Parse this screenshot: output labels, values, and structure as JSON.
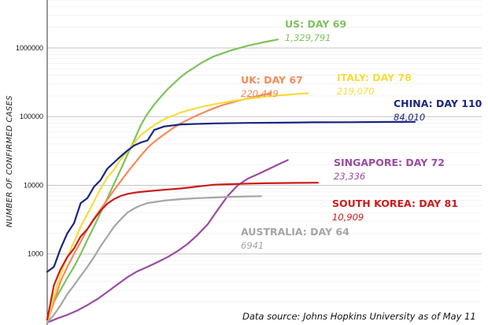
{
  "chart_data": {
    "type": "line",
    "title": "",
    "xlabel": "",
    "ylabel": "NUMBER OF CONFIRMED CASES",
    "yscale": "log",
    "ylim": [
      100,
      5000000
    ],
    "xlim": [
      0,
      130
    ],
    "y_ticks": [
      {
        "value": 1000,
        "label": "1000"
      },
      {
        "value": 10000,
        "label": "10000"
      },
      {
        "value": 100000,
        "label": "100000"
      },
      {
        "value": 1000000,
        "label": "1000000"
      }
    ],
    "grid": true,
    "source": "Data source: Johns Hopkins University as of May 11",
    "series": [
      {
        "name": "US: DAY 69",
        "label": "1,329,791",
        "color": "#7dc35b",
        "x": [
          0,
          2,
          4,
          6,
          8,
          10,
          12,
          14,
          16,
          18,
          20,
          22,
          24,
          26,
          28,
          30,
          32,
          34,
          36,
          38,
          40,
          42,
          44,
          46,
          48,
          50,
          55,
          60,
          65,
          69
        ],
        "y": [
          120,
          200,
          300,
          450,
          650,
          1000,
          1600,
          2500,
          4000,
          6500,
          10500,
          17000,
          28000,
          45000,
          75000,
          110000,
          150000,
          195000,
          250000,
          310000,
          380000,
          450000,
          520000,
          600000,
          680000,
          760000,
          920000,
          1080000,
          1220000,
          1329791
        ]
      },
      {
        "name": "UK: DAY 67",
        "label": "220,449",
        "color": "#f58a5a",
        "x": [
          0,
          2,
          4,
          6,
          8,
          10,
          12,
          14,
          16,
          18,
          20,
          22,
          24,
          26,
          28,
          30,
          32,
          34,
          36,
          38,
          40,
          44,
          48,
          52,
          56,
          60,
          64,
          67
        ],
        "y": [
          100,
          200,
          400,
          650,
          1000,
          1500,
          2300,
          3300,
          4500,
          6200,
          8500,
          11500,
          15500,
          20500,
          27000,
          35000,
          43000,
          51000,
          60000,
          70000,
          80000,
          100000,
          122000,
          145000,
          165000,
          185000,
          205000,
          220449
        ]
      },
      {
        "name": "ITALY: DAY 78",
        "label": "219,070",
        "color": "#f4dd3e",
        "x": [
          0,
          2,
          4,
          6,
          8,
          10,
          12,
          14,
          16,
          18,
          20,
          22,
          24,
          26,
          28,
          30,
          32,
          34,
          36,
          38,
          40,
          45,
          50,
          55,
          60,
          65,
          70,
          75,
          78
        ],
        "y": [
          100,
          250,
          500,
          900,
          1500,
          2500,
          3800,
          5800,
          9000,
          13000,
          17000,
          24000,
          31000,
          41000,
          54000,
          64000,
          75000,
          86000,
          97000,
          105000,
          115000,
          135000,
          152000,
          168000,
          182000,
          195000,
          205000,
          214000,
          219070
        ]
      },
      {
        "name": "CHINA: DAY 110",
        "label": "84,010",
        "color": "#1a2580",
        "x": [
          0,
          2,
          4,
          6,
          8,
          10,
          12,
          14,
          16,
          18,
          20,
          22,
          24,
          26,
          28,
          30,
          32,
          35,
          40,
          50,
          60,
          70,
          80,
          90,
          100,
          110
        ],
        "y": [
          550,
          650,
          1200,
          2000,
          2800,
          5500,
          6500,
          9500,
          12000,
          17500,
          21500,
          26500,
          32000,
          38000,
          42000,
          45000,
          64000,
          72000,
          77000,
          79800,
          81000,
          81800,
          82700,
          83000,
          83600,
          84010
        ]
      },
      {
        "name": "SINGAPORE: DAY 72",
        "label": "23,336",
        "color": "#9c4aa3",
        "x": [
          0,
          3,
          6,
          9,
          12,
          15,
          18,
          21,
          24,
          27,
          30,
          33,
          36,
          39,
          42,
          45,
          48,
          51,
          54,
          57,
          60,
          63,
          66,
          69,
          72
        ],
        "y": [
          100,
          115,
          130,
          150,
          180,
          220,
          280,
          360,
          460,
          560,
          650,
          760,
          900,
          1100,
          1400,
          1900,
          2700,
          4400,
          7000,
          10000,
          12500,
          14500,
          17000,
          20000,
          23336
        ]
      },
      {
        "name": "SOUTH KOREA: DAY 81",
        "label": "10,909",
        "color": "#cc1b1b",
        "x": [
          0,
          2,
          4,
          6,
          8,
          10,
          12,
          14,
          16,
          18,
          20,
          22,
          24,
          26,
          28,
          30,
          35,
          40,
          45,
          50,
          55,
          60,
          65,
          70,
          75,
          81
        ],
        "y": [
          110,
          350,
          600,
          900,
          1200,
          1800,
          2300,
          3200,
          4300,
          5400,
          6300,
          7000,
          7500,
          7800,
          8000,
          8200,
          8600,
          9000,
          9600,
          10200,
          10400,
          10600,
          10700,
          10800,
          10850,
          10909
        ]
      },
      {
        "name": "AUSTRALIA: DAY 64",
        "label": "6941",
        "color": "#a5a5a5",
        "x": [
          0,
          2,
          4,
          6,
          8,
          10,
          12,
          14,
          16,
          18,
          20,
          22,
          24,
          26,
          28,
          30,
          35,
          40,
          45,
          50,
          55,
          60,
          64
        ],
        "y": [
          100,
          130,
          180,
          260,
          350,
          480,
          650,
          900,
          1300,
          1800,
          2500,
          3200,
          4000,
          4600,
          5100,
          5500,
          6000,
          6300,
          6500,
          6650,
          6800,
          6900,
          6941
        ]
      }
    ]
  }
}
